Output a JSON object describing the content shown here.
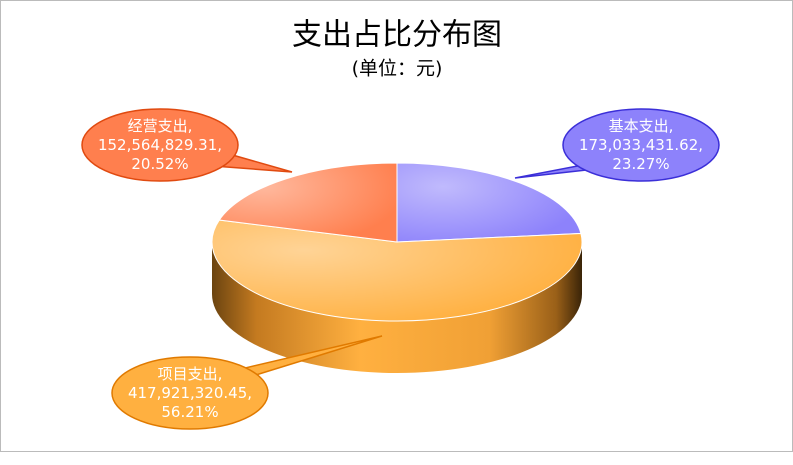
{
  "chart_data": {
    "type": "pie3d",
    "title": "支出占比分布图",
    "subtitle": "(单位：元)",
    "categories": [
      "基本支出",
      "项目支出",
      "经营支出"
    ],
    "values": [
      173033431.62,
      417921320.45,
      152564829.31
    ],
    "value_labels": [
      "173,033,431.62",
      "417,921,320.45",
      "152,564,829.31"
    ],
    "percentages": [
      23.27,
      56.21,
      20.52
    ],
    "percent_labels": [
      "23.27%",
      "56.21%",
      "20.52%"
    ],
    "label_separator": ",",
    "colors": [
      "#8d82fb",
      "#ffb040",
      "#ff7f4e"
    ]
  }
}
